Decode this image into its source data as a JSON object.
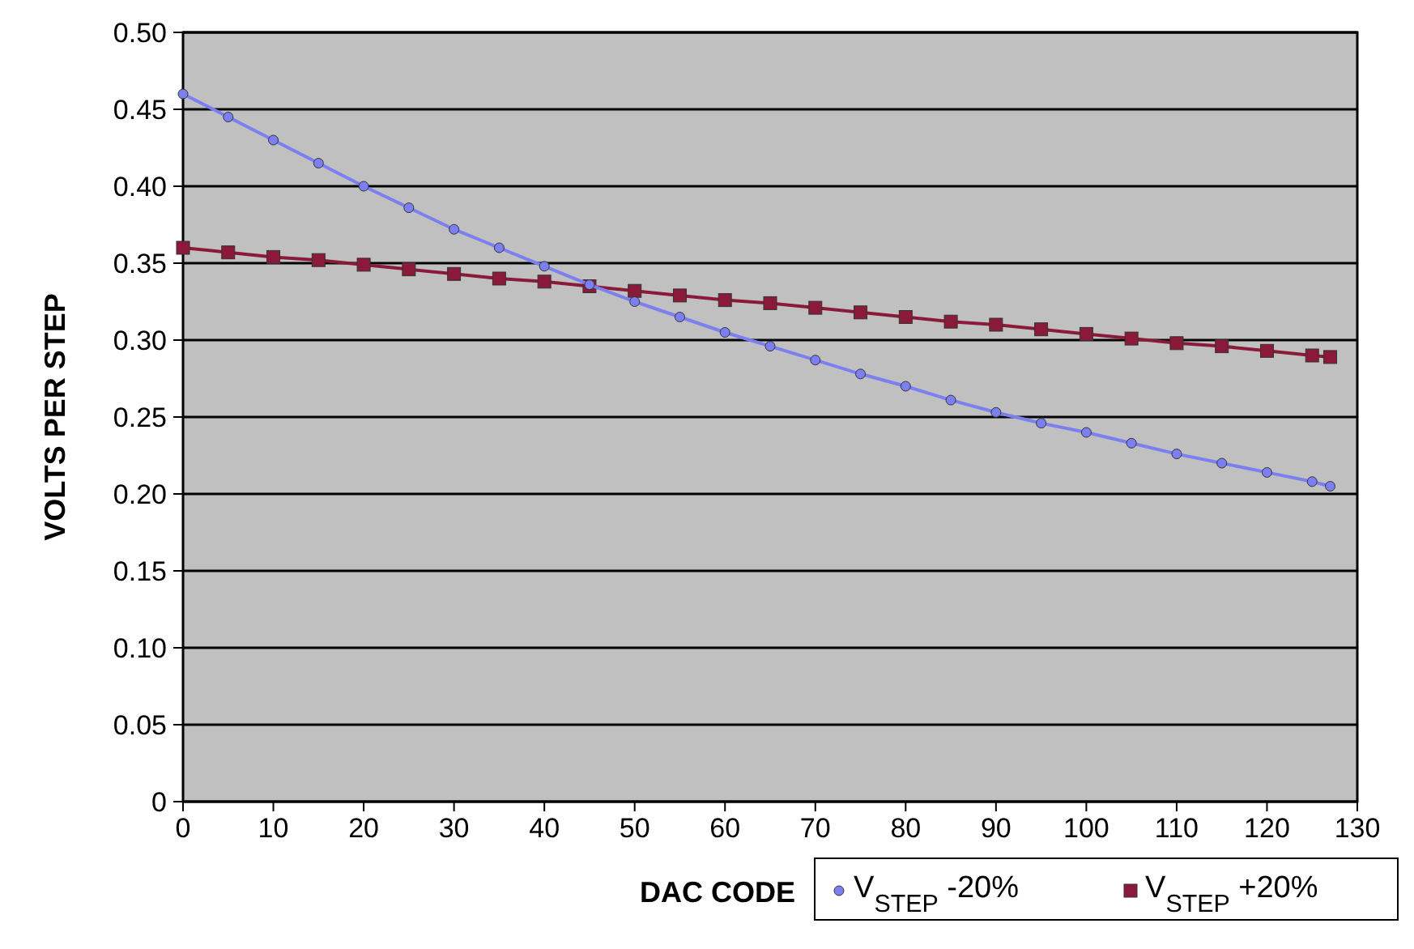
{
  "chart_data": {
    "type": "line",
    "xlabel": "DAC CODE",
    "ylabel": "VOLTS PER STEP",
    "xlim": [
      0,
      130
    ],
    "xticks": [
      0,
      10,
      20,
      30,
      40,
      50,
      60,
      70,
      80,
      90,
      100,
      110,
      120,
      130
    ],
    "ylim": [
      0,
      0.5
    ],
    "yticks": [
      {
        "value": 0,
        "label": "0"
      },
      {
        "value": 0.05,
        "label": "0.05"
      },
      {
        "value": 0.1,
        "label": "0.10"
      },
      {
        "value": 0.15,
        "label": "0.15"
      },
      {
        "value": 0.2,
        "label": "0.20"
      },
      {
        "value": 0.25,
        "label": "0.25"
      },
      {
        "value": 0.3,
        "label": "0.30"
      },
      {
        "value": 0.35,
        "label": "0.35"
      },
      {
        "value": 0.4,
        "label": "0.40"
      },
      {
        "value": 0.45,
        "label": "0.45"
      },
      {
        "value": 0.5,
        "label": "0.50"
      }
    ],
    "grid": "y",
    "legend": "bottom right",
    "x": [
      0,
      5,
      10,
      15,
      20,
      25,
      30,
      35,
      40,
      45,
      50,
      55,
      60,
      65,
      70,
      75,
      80,
      85,
      90,
      95,
      100,
      105,
      110,
      115,
      120,
      125,
      127
    ],
    "series": [
      {
        "name": "V$_{STEP}$ -20%",
        "color": "#7b7ff0",
        "marker": "circle",
        "values": [
          0.46,
          0.445,
          0.43,
          0.415,
          0.4,
          0.386,
          0.372,
          0.36,
          0.348,
          0.336,
          0.325,
          0.315,
          0.305,
          0.296,
          0.287,
          0.278,
          0.27,
          0.261,
          0.253,
          0.246,
          0.24,
          0.233,
          0.226,
          0.22,
          0.214,
          0.208,
          0.205
        ]
      },
      {
        "name": "V$_{STEP}$ +20%",
        "color": "#8b1a3a",
        "marker": "square",
        "values": [
          0.36,
          0.357,
          0.354,
          0.352,
          0.349,
          0.346,
          0.343,
          0.34,
          0.338,
          0.335,
          0.332,
          0.329,
          0.326,
          0.324,
          0.321,
          0.318,
          0.315,
          0.312,
          0.31,
          0.307,
          0.304,
          0.301,
          0.298,
          0.296,
          0.293,
          0.29,
          0.289
        ]
      }
    ]
  }
}
